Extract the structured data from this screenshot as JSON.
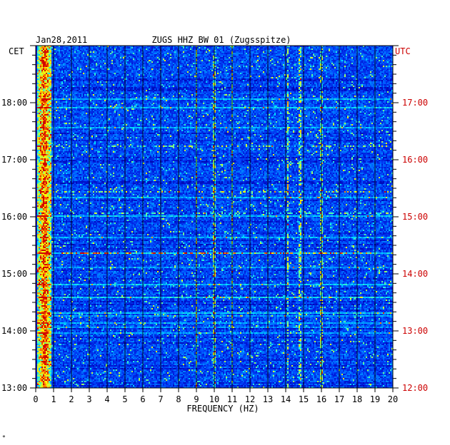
{
  "chart_data": {
    "type": "heatmap",
    "title": "ZUGS HHZ BW 01 (Zugsspitze)",
    "date": "Jan28,2011",
    "xlabel": "FREQUENCY (HZ)",
    "left_axis_label": "CET",
    "right_axis_label": "UTC",
    "xlim": [
      0,
      20
    ],
    "x_ticks": [
      0,
      1,
      2,
      3,
      4,
      5,
      6,
      7,
      8,
      9,
      10,
      11,
      12,
      13,
      14,
      15,
      16,
      17,
      18,
      19,
      20
    ],
    "ylim_cet_hours": [
      13,
      19
    ],
    "y_ticks_cet": [
      "13:00",
      "14:00",
      "15:00",
      "16:00",
      "17:00",
      "18:00"
    ],
    "y_ticks_utc": [
      "12:00",
      "13:00",
      "14:00",
      "15:00",
      "16:00",
      "17:00"
    ],
    "colormap": [
      "#0000a0",
      "#0018d8",
      "#0050ff",
      "#00a0ff",
      "#00e0ff",
      "#80ff80",
      "#ffff00",
      "#ff8000",
      "#d00000"
    ],
    "grid": true,
    "features": {
      "low_frequency_band_hz": [
        0.1,
        0.9
      ],
      "persistent_lines_hz": [
        9.0,
        10.0,
        11.0,
        14.1,
        14.8,
        16.0
      ],
      "bright_horizontal_events_cet": [
        "17:15",
        "16:27",
        "16:05",
        "15:22"
      ]
    },
    "footer_mark": "*"
  }
}
